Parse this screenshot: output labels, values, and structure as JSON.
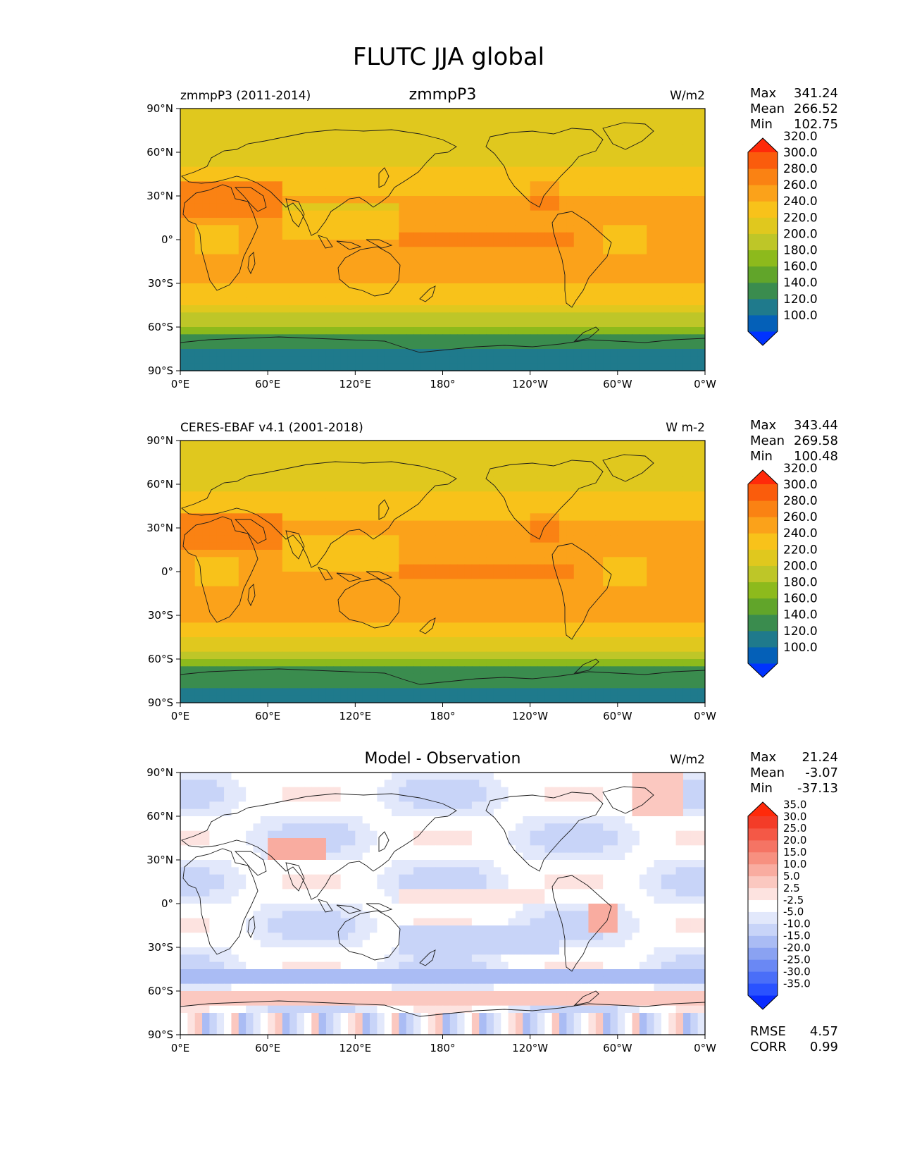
{
  "figure_title": "FLUTC JJA global",
  "chart_data": [
    {
      "type": "heatmap",
      "name": "test",
      "left_title": "zmmpP3 (2011-2014)",
      "center_title": "zmmpP3",
      "units": "W/m2",
      "stats": [
        {
          "label": "Max",
          "value": "341.24"
        },
        {
          "label": "Mean",
          "value": "266.52"
        },
        {
          "label": "Min",
          "value": "102.75"
        }
      ],
      "colorbar": {
        "levels": [
          "100.0",
          "120.0",
          "140.0",
          "160.0",
          "180.0",
          "200.0",
          "220.0",
          "240.0",
          "260.0",
          "280.0",
          "300.0",
          "320.0"
        ],
        "colors": [
          "#0033ff",
          "#0460b8",
          "#1f7a8c",
          "#3a8c4e",
          "#61a52a",
          "#8dba1c",
          "#bec628",
          "#e0c81e",
          "#f8c21a",
          "#fba21a",
          "#fa8213",
          "#fa5c0c",
          "#ff2a0a"
        ]
      },
      "x_ticks": [
        "0°E",
        "60°E",
        "120°E",
        "180°",
        "120°W",
        "60°W",
        "0°W"
      ],
      "y_ticks": [
        "90°N",
        "60°N",
        "30°N",
        "0°",
        "30°S",
        "60°S",
        "90°S"
      ],
      "xlim": [
        0,
        360
      ],
      "ylim": [
        -90,
        90
      ]
    },
    {
      "type": "heatmap",
      "name": "reference",
      "left_title": "CERES-EBAF v4.1 (2001-2018)",
      "center_title": "",
      "units": "W m-2",
      "stats": [
        {
          "label": "Max",
          "value": "343.44"
        },
        {
          "label": "Mean",
          "value": "269.58"
        },
        {
          "label": "Min",
          "value": "100.48"
        }
      ],
      "colorbar": {
        "levels": [
          "100.0",
          "120.0",
          "140.0",
          "160.0",
          "180.0",
          "200.0",
          "220.0",
          "240.0",
          "260.0",
          "280.0",
          "300.0",
          "320.0"
        ],
        "colors": [
          "#0033ff",
          "#0460b8",
          "#1f7a8c",
          "#3a8c4e",
          "#61a52a",
          "#8dba1c",
          "#bec628",
          "#e0c81e",
          "#f8c21a",
          "#fba21a",
          "#fa8213",
          "#fa5c0c",
          "#ff2a0a"
        ]
      },
      "x_ticks": [
        "0°E",
        "60°E",
        "120°E",
        "180°",
        "120°W",
        "60°W",
        "0°W"
      ],
      "y_ticks": [
        "90°N",
        "60°N",
        "30°N",
        "0°",
        "30°S",
        "60°S",
        "90°S"
      ],
      "xlim": [
        0,
        360
      ],
      "ylim": [
        -90,
        90
      ]
    },
    {
      "type": "heatmap",
      "name": "difference",
      "left_title": "",
      "center_title": "Model - Observation",
      "units": "W/m2",
      "stats": [
        {
          "label": "Max",
          "value": "21.24"
        },
        {
          "label": "Mean",
          "value": "-3.07"
        },
        {
          "label": "Min",
          "value": "-37.13"
        }
      ],
      "extra_stats": [
        {
          "label": "RMSE",
          "value": "4.57"
        },
        {
          "label": "CORR",
          "value": "0.99"
        }
      ],
      "colorbar": {
        "levels": [
          "-35.0",
          "-30.0",
          "-25.0",
          "-20.0",
          "-15.0",
          "-10.0",
          "-5.0",
          "-2.5",
          "2.5",
          "5.0",
          "10.0",
          "15.0",
          "20.0",
          "25.0",
          "30.0",
          "35.0"
        ],
        "colors": [
          "#0a2cff",
          "#2a52ff",
          "#4a6ef8",
          "#6a88f4",
          "#8aa2f2",
          "#aabcf4",
          "#c8d4f8",
          "#e2e8fb",
          "#ffffff",
          "#fde3e0",
          "#fbc8c0",
          "#f9aca0",
          "#f79080",
          "#f57464",
          "#f45846",
          "#f33c28",
          "#ff2a0a"
        ]
      },
      "x_ticks": [
        "0°E",
        "60°E",
        "120°E",
        "180°",
        "120°W",
        "60°W",
        "0°W"
      ],
      "y_ticks": [
        "90°N",
        "60°N",
        "30°N",
        "0°",
        "30°S",
        "60°S",
        "90°S"
      ],
      "xlim": [
        0,
        360
      ],
      "ylim": [
        -90,
        90
      ]
    }
  ]
}
